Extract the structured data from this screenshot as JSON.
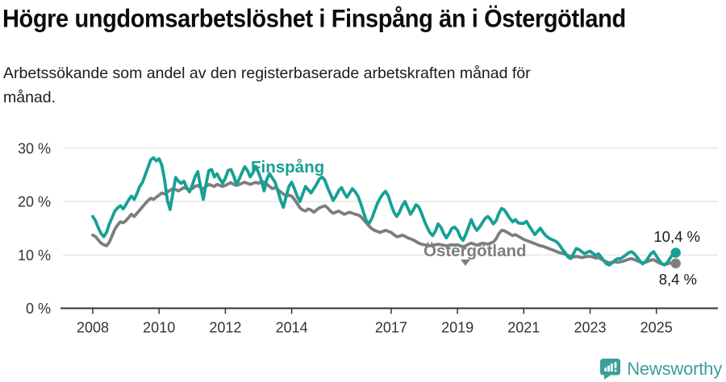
{
  "header": {
    "title": "Högre ungdomsarbetslöshet i Finspång än i Östergötland",
    "subtitle": "Arbetssökande som andel av den registerbaserade arbetskraften månad för månad."
  },
  "chart_data": {
    "type": "line",
    "unit": "%",
    "x_start": "2008-01",
    "x_end": "2025-08",
    "x_step": "month",
    "grid": "horizontal",
    "ylim": [
      0,
      32
    ],
    "y_ticks": [
      {
        "value": 0,
        "label": "0 %"
      },
      {
        "value": 10,
        "label": "10 %"
      },
      {
        "value": 20,
        "label": "20 %"
      },
      {
        "value": 30,
        "label": "30 %"
      }
    ],
    "x_ticks": [
      {
        "year": 2008,
        "label": "2008"
      },
      {
        "year": 2010,
        "label": "2010"
      },
      {
        "year": 2012,
        "label": "2012"
      },
      {
        "year": 2014,
        "label": "2014"
      },
      {
        "year": 2017,
        "label": "2017"
      },
      {
        "year": 2019,
        "label": "2019"
      },
      {
        "year": 2021,
        "label": "2021"
      },
      {
        "year": 2023,
        "label": "2023"
      },
      {
        "year": 2025,
        "label": "2025"
      }
    ],
    "series": [
      {
        "name": "Finspång",
        "color": "#17A095",
        "end_label": "10,4 %",
        "end_value": 10.4,
        "values": [
          17.2,
          16.4,
          15.1,
          14.0,
          13.4,
          14.2,
          15.8,
          17.0,
          18.2,
          18.8,
          19.2,
          18.6,
          19.4,
          20.3,
          21.0,
          20.4,
          21.5,
          22.8,
          23.6,
          25.0,
          26.4,
          27.8,
          28.2,
          27.6,
          28.0,
          26.8,
          24.0,
          20.2,
          18.5,
          21.6,
          24.5,
          23.8,
          23.4,
          23.8,
          22.6,
          21.8,
          23.0,
          24.6,
          25.6,
          22.8,
          20.4,
          23.2,
          25.8,
          26.0,
          24.6,
          25.2,
          24.2,
          23.4,
          24.4,
          25.8,
          26.0,
          24.8,
          23.2,
          24.2,
          25.4,
          26.5,
          25.8,
          24.6,
          25.4,
          26.6,
          25.4,
          24.0,
          22.0,
          24.2,
          25.2,
          24.4,
          23.6,
          22.0,
          20.2,
          18.9,
          21.0,
          22.8,
          23.6,
          22.4,
          21.0,
          20.0,
          21.4,
          22.8,
          22.2,
          21.6,
          22.4,
          23.2,
          24.2,
          24.6,
          24.0,
          22.6,
          21.4,
          20.2,
          21.0,
          22.0,
          22.6,
          21.6,
          20.8,
          21.6,
          22.4,
          21.8,
          21.0,
          19.6,
          18.0,
          16.4,
          15.9,
          16.8,
          18.2,
          19.6,
          20.6,
          21.4,
          21.9,
          21.0,
          19.4,
          18.0,
          17.2,
          18.0,
          19.2,
          20.0,
          18.8,
          17.6,
          18.4,
          19.4,
          19.0,
          17.8,
          16.4,
          15.2,
          14.2,
          13.6,
          14.4,
          15.8,
          15.2,
          14.0,
          13.2,
          14.0,
          15.0,
          15.2,
          14.6,
          13.4,
          12.7,
          13.8,
          15.2,
          16.6,
          15.4,
          14.6,
          15.2,
          16.0,
          16.8,
          17.2,
          16.6,
          15.8,
          16.4,
          17.8,
          18.7,
          18.4,
          17.6,
          16.8,
          16.2,
          16.6,
          16.0,
          15.9,
          15.9,
          16.3,
          15.4,
          14.6,
          13.8,
          14.4,
          15.0,
          14.2,
          13.6,
          13.2,
          12.9,
          12.7,
          12.4,
          11.8,
          11.0,
          10.4,
          9.6,
          9.3,
          10.2,
          11.2,
          11.0,
          10.6,
          10.2,
          10.5,
          10.7,
          10.3,
          9.9,
          10.2,
          9.6,
          8.9,
          8.3,
          8.1,
          8.5,
          9.0,
          9.3,
          9.3,
          9.6,
          10.0,
          10.4,
          10.6,
          10.2,
          9.6,
          8.9,
          8.3,
          8.7,
          9.4,
          10.2,
          10.6,
          9.8,
          9.0,
          8.3,
          8.1,
          8.6,
          9.4,
          10.1,
          10.4
        ]
      },
      {
        "name": "Östergötland",
        "color": "#7E7E7E",
        "end_label": "8,4 %",
        "end_value": 8.4,
        "values": [
          13.7,
          13.4,
          12.8,
          12.2,
          11.9,
          11.7,
          12.4,
          13.6,
          14.8,
          15.6,
          16.2,
          16.0,
          16.4,
          17.0,
          17.6,
          17.2,
          17.8,
          18.4,
          19.0,
          19.6,
          20.2,
          20.6,
          20.4,
          20.8,
          21.2,
          21.6,
          21.4,
          21.8,
          22.1,
          22.4,
          22.2,
          22.0,
          22.3,
          22.6,
          22.4,
          22.2,
          22.4,
          22.8,
          23.0,
          22.6,
          22.4,
          22.8,
          23.2,
          23.0,
          22.8,
          23.2,
          23.0,
          22.8,
          23.0,
          23.3,
          23.5,
          23.2,
          23.0,
          23.2,
          23.4,
          23.6,
          23.4,
          23.2,
          23.4,
          23.6,
          23.4,
          23.8,
          23.6,
          23.2,
          22.8,
          22.4,
          22.6,
          22.2,
          21.8,
          21.4,
          21.0,
          21.2,
          21.0,
          20.4,
          19.6,
          18.8,
          18.4,
          18.2,
          18.6,
          18.4,
          18.0,
          18.4,
          18.8,
          19.0,
          19.2,
          18.8,
          18.2,
          17.8,
          18.0,
          18.2,
          17.9,
          17.6,
          17.8,
          18.0,
          17.8,
          17.6,
          17.5,
          17.2,
          16.6,
          16.0,
          15.4,
          14.9,
          14.6,
          14.4,
          14.2,
          14.4,
          14.6,
          14.4,
          14.2,
          13.8,
          13.4,
          13.5,
          13.7,
          13.5,
          13.2,
          13.0,
          12.8,
          12.5,
          12.2,
          12.0,
          11.9,
          11.8,
          11.7,
          11.8,
          11.9,
          12.0,
          11.9,
          11.8,
          11.7,
          11.8,
          11.9,
          11.8,
          11.9,
          11.7,
          11.5,
          11.7,
          12.0,
          12.2,
          12.0,
          11.8,
          12.0,
          12.2,
          12.1,
          12.0,
          12.2,
          12.4,
          13.0,
          14.0,
          14.6,
          14.5,
          14.2,
          13.9,
          13.6,
          13.8,
          13.5,
          13.2,
          12.9,
          12.7,
          12.5,
          12.3,
          12.1,
          11.9,
          11.7,
          11.6,
          11.4,
          11.2,
          11.0,
          10.8,
          10.6,
          10.4,
          10.3,
          10.1,
          9.9,
          9.7,
          9.6,
          9.7,
          9.6,
          9.5,
          9.6,
          9.7,
          9.7,
          9.6,
          9.4,
          9.5,
          9.2,
          8.9,
          8.7,
          8.5,
          8.6,
          8.7,
          8.6,
          8.7,
          8.8,
          9.0,
          9.2,
          9.3,
          9.1,
          8.9,
          8.7,
          8.5,
          8.6,
          8.8,
          9.0,
          9.1,
          8.8,
          8.5,
          8.3,
          8.2,
          8.3,
          8.5,
          8.4,
          8.4
        ]
      }
    ],
    "legend_position": "inline-labels"
  },
  "footer": {
    "brand": "Newsworthy",
    "brand_color": "#3C9E98"
  }
}
